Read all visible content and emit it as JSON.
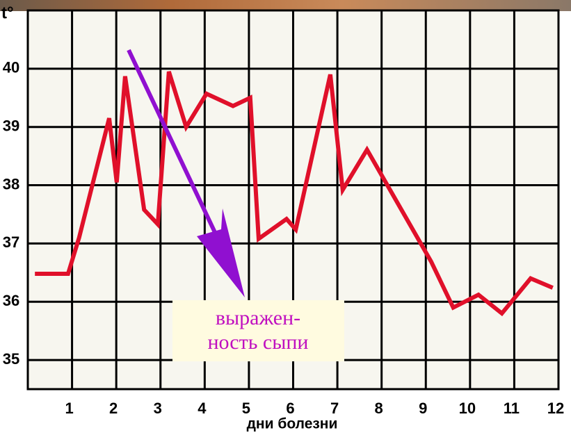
{
  "chart_data": {
    "type": "line",
    "y_label": "t°",
    "x_label": "дни болезни",
    "annotation": [
      "выражен-",
      "ность сыпи"
    ],
    "x": [
      0.16,
      0.91,
      1.16,
      1.84,
      2.01,
      2.2,
      2.63,
      2.94,
      3.19,
      3.58,
      4.04,
      4.64,
      5.03,
      5.22,
      5.85,
      6.06,
      6.84,
      7.12,
      7.67,
      9.12,
      9.62,
      10.19,
      10.72,
      11.37,
      11.87
    ],
    "values": [
      36.48,
      36.48,
      37.1,
      39.15,
      38.05,
      39.87,
      37.58,
      37.33,
      39.95,
      39.0,
      39.57,
      39.36,
      39.5,
      37.08,
      37.42,
      37.24,
      39.9,
      37.92,
      38.61,
      36.69,
      35.9,
      36.12,
      35.8,
      36.4,
      36.24
    ],
    "color": "#e0102a",
    "xlim": [
      0,
      12
    ],
    "xticks": [
      1,
      2,
      3,
      4,
      5,
      6,
      7,
      8,
      9,
      10,
      11,
      12
    ],
    "ylim": [
      34.5,
      41
    ],
    "yticks": [
      35,
      36,
      37,
      38,
      39,
      40
    ],
    "grid": true
  }
}
